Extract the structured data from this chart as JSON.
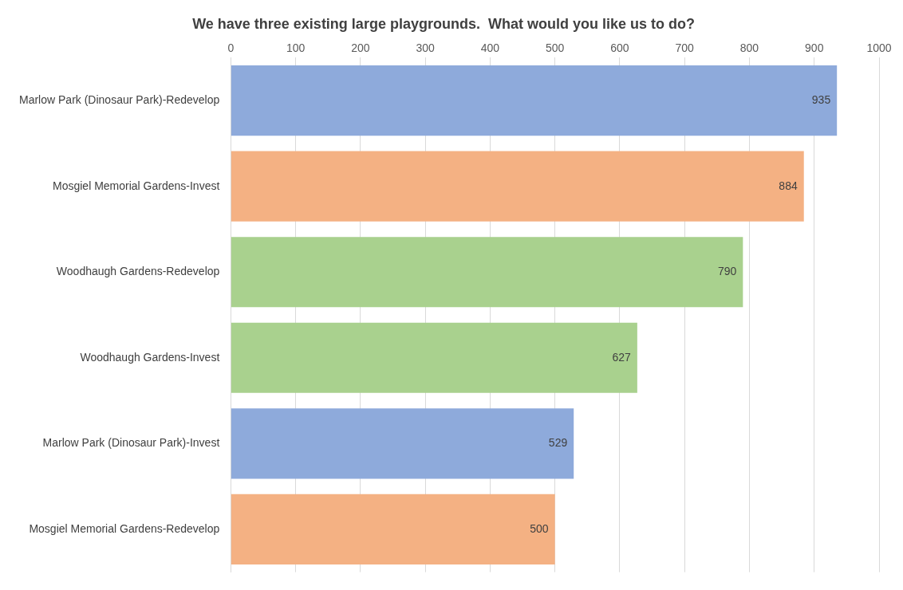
{
  "chart_data": {
    "type": "bar",
    "orientation": "horizontal",
    "title": "We have three existing large playgrounds.  What would you like us to do?",
    "categories": [
      "Marlow Park (Dinosaur Park)-Redevelop",
      "Mosgiel Memorial Gardens-Invest",
      "Woodhaugh Gardens-Redevelop",
      "Woodhaugh Gardens-Invest",
      "Marlow Park (Dinosaur Park)-Invest",
      "Mosgiel Memorial Gardens-Redevelop"
    ],
    "values": [
      935,
      884,
      790,
      627,
      529,
      500
    ],
    "colors": [
      "#8eaadb",
      "#f4b183",
      "#a9d18e",
      "#a9d18e",
      "#8eaadb",
      "#f4b183"
    ],
    "xlim": [
      0,
      1000
    ],
    "xticks": [
      0,
      100,
      200,
      300,
      400,
      500,
      600,
      700,
      800,
      900,
      1000
    ],
    "grid": "x",
    "legend": false,
    "data_labels": true
  }
}
